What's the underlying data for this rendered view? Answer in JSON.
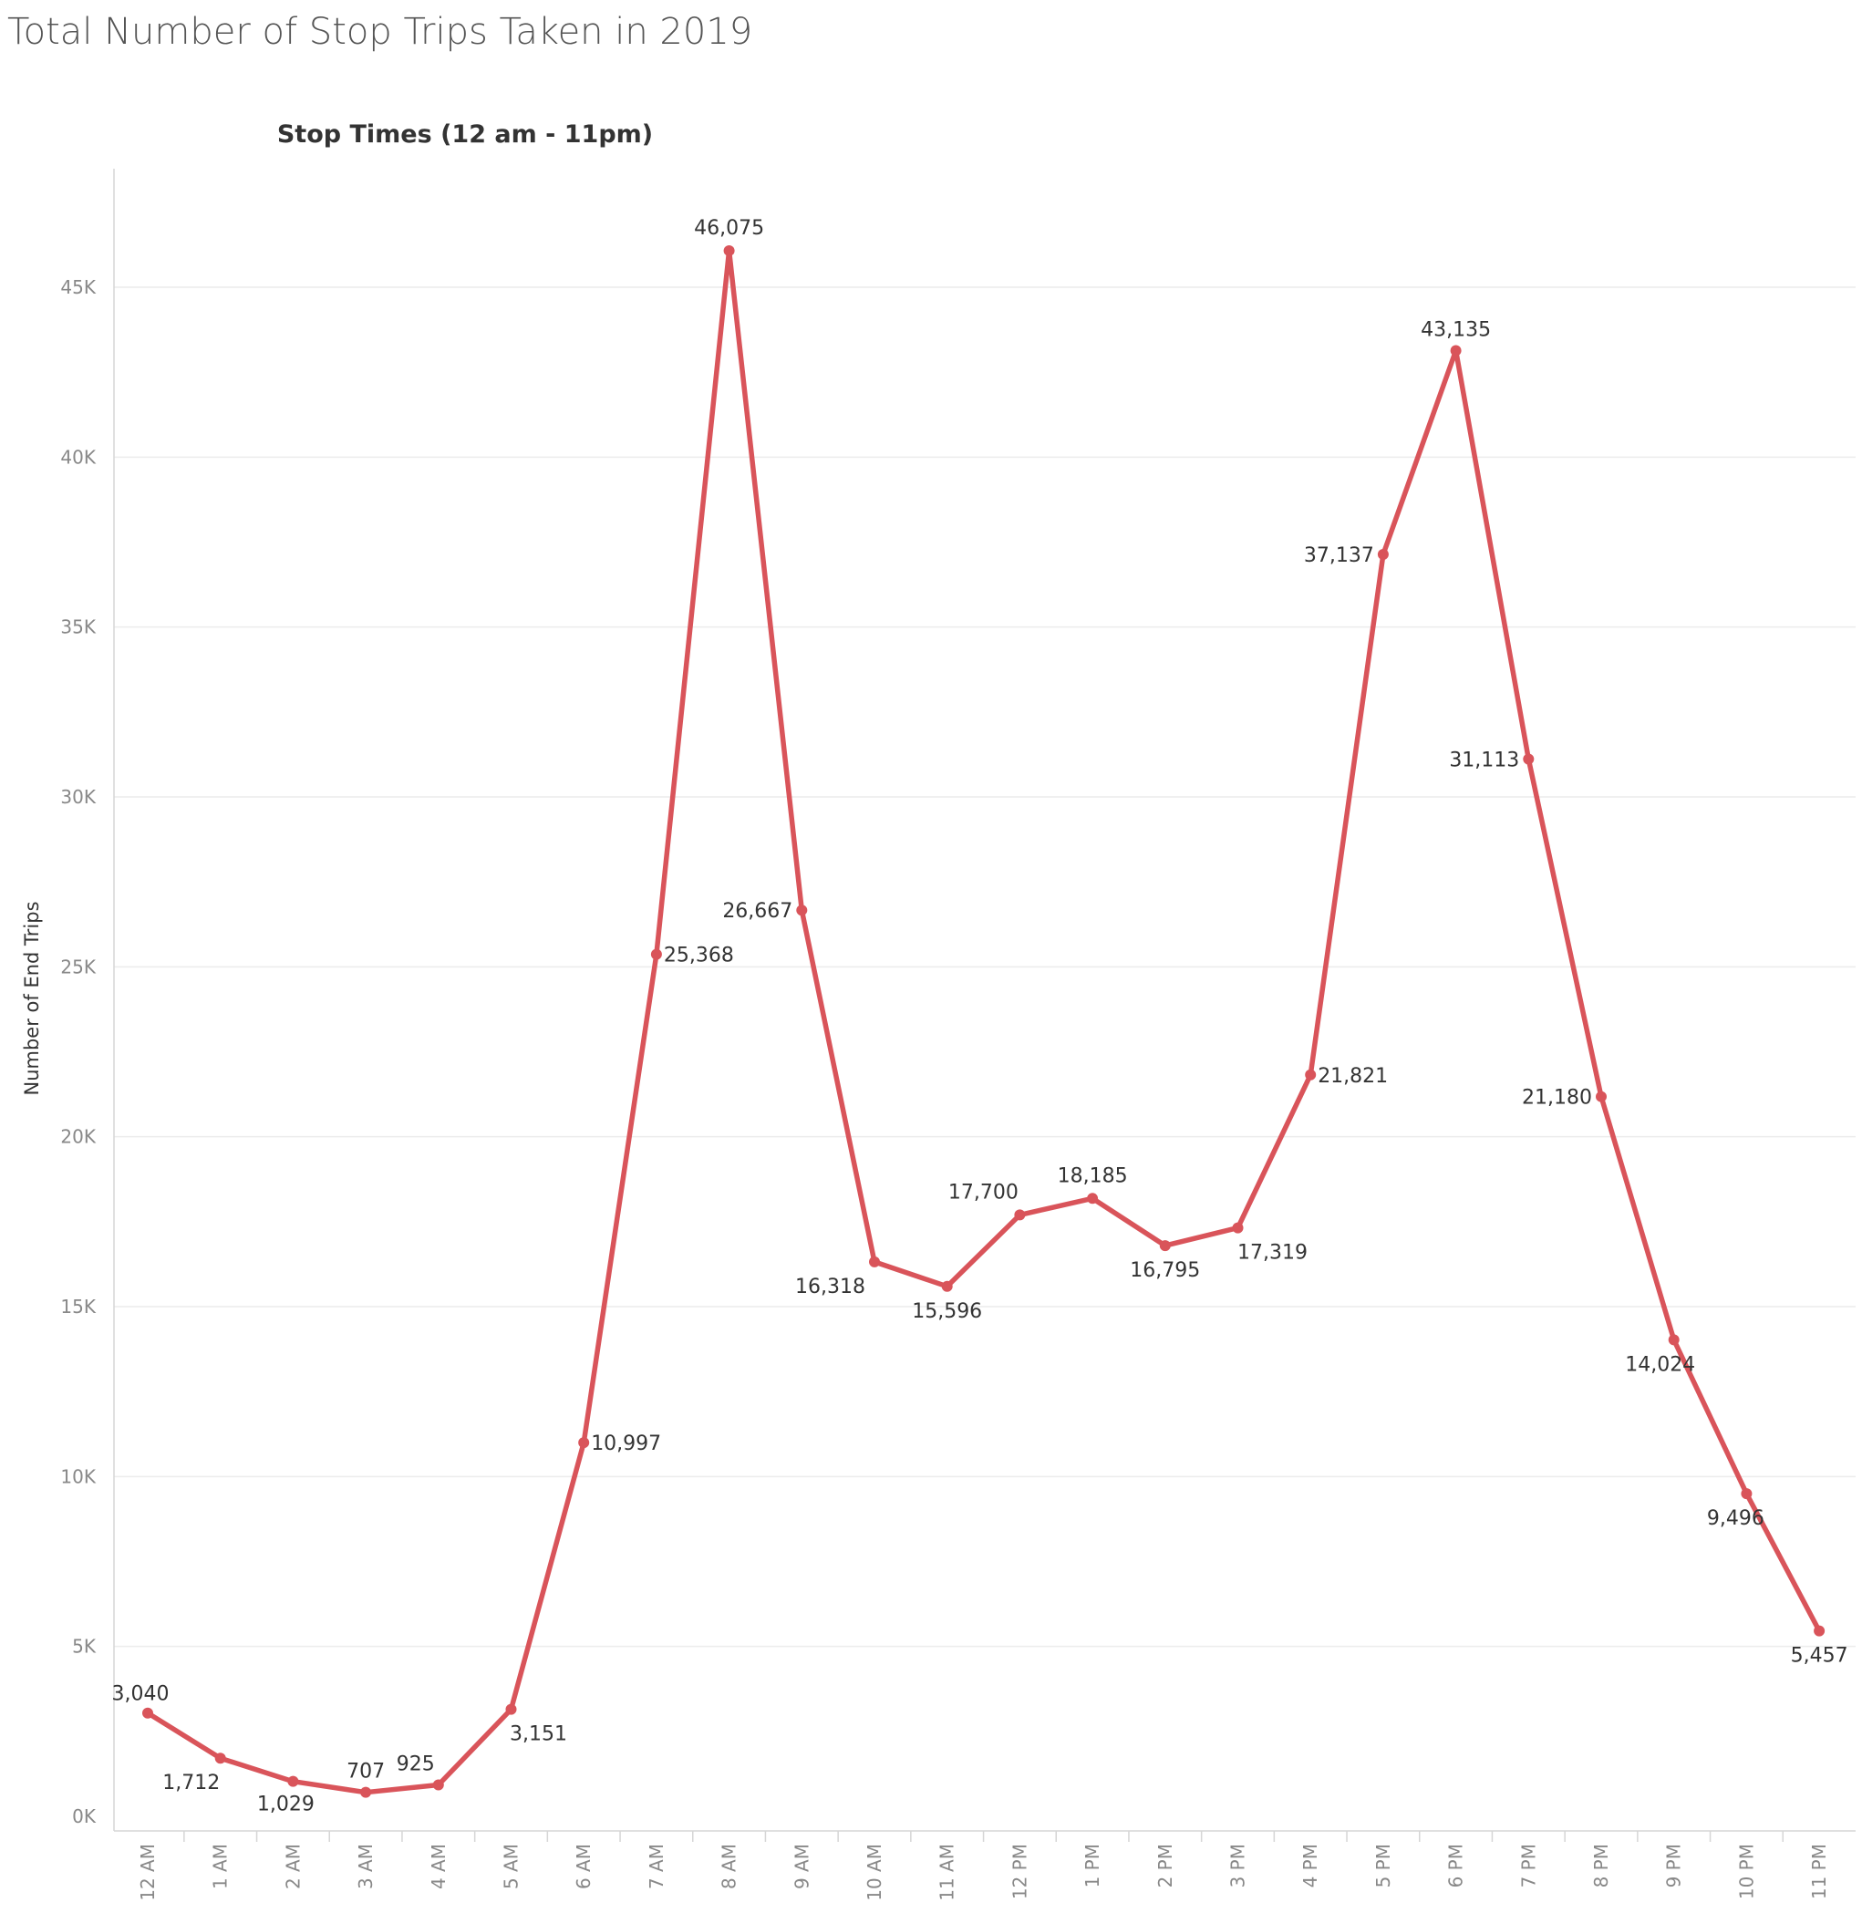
{
  "title": "Total Number of Stop Trips Taken in 2019",
  "colors": {
    "line": "#d9545a",
    "grid": "#ececec",
    "tick_text": "#888888",
    "label_text": "#333333"
  },
  "chart_data": {
    "type": "line",
    "title": "Stop Times (12 am - 11pm)",
    "xlabel": "",
    "ylabel": "Number of End Trips",
    "ylim": [
      0,
      47500
    ],
    "grid": true,
    "categories": [
      "12 AM",
      "1 AM",
      "2 AM",
      "3 AM",
      "4 AM",
      "5 AM",
      "6 AM",
      "7 AM",
      "8 AM",
      "9 AM",
      "10 AM",
      "11 AM",
      "12 PM",
      "1 PM",
      "2 PM",
      "3 PM",
      "4 PM",
      "5 PM",
      "6 PM",
      "7 PM",
      "8 PM",
      "9 PM",
      "10 PM",
      "11 PM"
    ],
    "values": [
      3040,
      1712,
      1029,
      707,
      925,
      3151,
      10997,
      25368,
      46075,
      26667,
      16318,
      15596,
      17700,
      18185,
      16795,
      17319,
      21821,
      37137,
      43135,
      31113,
      21180,
      14024,
      9496,
      5457
    ],
    "value_labels": [
      "3,040",
      "1,712",
      "1,029",
      "707",
      "925",
      "3,151",
      "10,997",
      "25,368",
      "46,075",
      "26,667",
      "16,318",
      "15,596",
      "17,700",
      "18,185",
      "16,795",
      "17,319",
      "21,821",
      "37,137",
      "43,135",
      "31,113",
      "21,180",
      "14,024",
      "9,496",
      "5,457"
    ],
    "y_ticks": [
      0,
      5000,
      10000,
      15000,
      20000,
      25000,
      30000,
      35000,
      40000,
      45000
    ],
    "y_tick_labels": [
      "0K",
      "5K",
      "10K",
      "15K",
      "20K",
      "25K",
      "30K",
      "35K",
      "40K",
      "45K"
    ]
  }
}
